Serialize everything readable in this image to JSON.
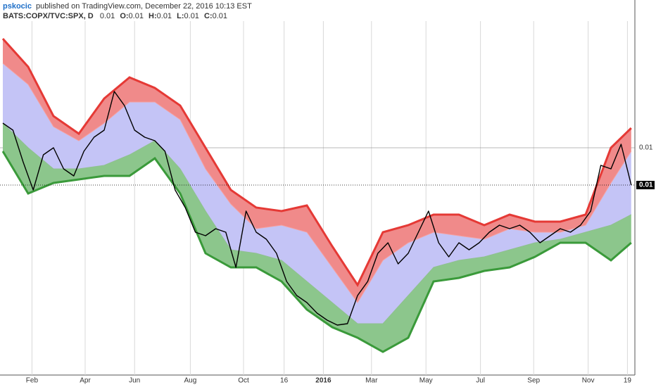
{
  "header": {
    "author": "pskocic",
    "published": "published on TradingView.com, December 22, 2016 10:13 EST",
    "symbol": "BATS:COPX/TVC:SPX, D",
    "last": "0.01",
    "ohlc": [
      {
        "key": "O:",
        "value": "0.01"
      },
      {
        "key": "H:",
        "value": "0.01"
      },
      {
        "key": "L:",
        "value": "0.01"
      },
      {
        "key": "C:",
        "value": "0.01"
      }
    ]
  },
  "chart_data": {
    "type": "line",
    "xlim": [
      0,
      500
    ],
    "xticks": [
      {
        "value": 23,
        "label": "Feb"
      },
      {
        "value": 65,
        "label": "Apr"
      },
      {
        "value": 104,
        "label": "Jun"
      },
      {
        "value": 148,
        "label": "Aug"
      },
      {
        "value": 190,
        "label": "Oct"
      },
      {
        "value": 222,
        "label": "16"
      },
      {
        "value": 253,
        "label": "2016"
      },
      {
        "value": 291,
        "label": "Mar"
      },
      {
        "value": 334,
        "label": "May"
      },
      {
        "value": 377,
        "label": "Jul"
      },
      {
        "value": 419,
        "label": "Sep"
      },
      {
        "value": 462,
        "label": "Nov"
      },
      {
        "value": 493,
        "label": "19"
      }
    ],
    "ylim": [
      0.0085,
      0.0135
    ],
    "yticks": [
      {
        "value": 0.0117,
        "label": "0.01"
      }
    ],
    "last_price": {
      "value": 0.01117,
      "label": "0.01"
    },
    "grid": true,
    "band_x": [
      0,
      20,
      40,
      60,
      80,
      100,
      120,
      140,
      160,
      180,
      200,
      220,
      240,
      260,
      280,
      300,
      320,
      340,
      360,
      380,
      400,
      420,
      440,
      460,
      480,
      496
    ],
    "bands": [
      {
        "color": "#e53935",
        "values": [
          0.01325,
          0.01285,
          0.01215,
          0.0119,
          0.0124,
          0.0127,
          0.01255,
          0.0123,
          0.0117,
          0.0111,
          0.01085,
          0.0108,
          0.01088,
          0.0103,
          0.00975,
          0.0105,
          0.0106,
          0.01075,
          0.01075,
          0.0106,
          0.01075,
          0.01065,
          0.01065,
          0.01075,
          0.0117,
          0.01198
        ]
      },
      {
        "color": "#f5a0a0",
        "values": [
          0.0129,
          0.0126,
          0.012,
          0.0118,
          0.01205,
          0.01235,
          0.01235,
          0.0121,
          0.0114,
          0.0109,
          0.01055,
          0.0106,
          0.0105,
          0.01,
          0.0095,
          0.0101,
          0.01035,
          0.0105,
          0.01045,
          0.0104,
          0.01055,
          0.0105,
          0.0105,
          0.0106,
          0.0112,
          0.01165
        ]
      },
      {
        "color": "#8fc08f",
        "values": [
          0.01205,
          0.0117,
          0.0114,
          0.0114,
          0.01145,
          0.0116,
          0.0118,
          0.0114,
          0.0108,
          0.01025,
          0.0102,
          0.0101,
          0.0098,
          0.0095,
          0.0092,
          0.0092,
          0.0096,
          0.01,
          0.0101,
          0.01015,
          0.01025,
          0.01035,
          0.0104,
          0.0105,
          0.0106,
          0.01075
        ]
      },
      {
        "color": "#3a9a3a",
        "values": [
          0.01165,
          0.01105,
          0.0112,
          0.01125,
          0.0113,
          0.0113,
          0.01155,
          0.01105,
          0.0102,
          0.01,
          0.01,
          0.0098,
          0.0094,
          0.00915,
          0.009,
          0.0088,
          0.009,
          0.0098,
          0.00985,
          0.00995,
          0.01,
          0.01015,
          0.01035,
          0.01035,
          0.0101,
          0.01035
        ]
      }
    ],
    "fills": [
      "#f08a8a",
      "#c4c4f6",
      "#8cc68c"
    ],
    "x": [
      0,
      8,
      16,
      24,
      32,
      40,
      48,
      56,
      64,
      72,
      80,
      88,
      96,
      104,
      112,
      120,
      128,
      136,
      144,
      152,
      160,
      168,
      176,
      184,
      192,
      200,
      208,
      216,
      224,
      232,
      240,
      248,
      256,
      264,
      272,
      280,
      288,
      296,
      304,
      312,
      320,
      328,
      336,
      344,
      352,
      360,
      368,
      376,
      384,
      392,
      400,
      408,
      416,
      424,
      432,
      440,
      448,
      456,
      464,
      472,
      480,
      488,
      496
    ],
    "color": "#000000",
    "values": [
      0.01205,
      0.01195,
      0.0115,
      0.0111,
      0.0116,
      0.0117,
      0.0114,
      0.0113,
      0.01165,
      0.01185,
      0.01195,
      0.0125,
      0.0123,
      0.01195,
      0.01185,
      0.0118,
      0.01165,
      0.0111,
      0.01085,
      0.0105,
      0.01045,
      0.01055,
      0.0105,
      0.01,
      0.0108,
      0.0105,
      0.0104,
      0.0102,
      0.0098,
      0.0096,
      0.0095,
      0.00935,
      0.00925,
      0.00918,
      0.0092,
      0.0096,
      0.0098,
      0.0102,
      0.01035,
      0.01005,
      0.0102,
      0.0105,
      0.0108,
      0.01035,
      0.01015,
      0.01035,
      0.01025,
      0.01035,
      0.0105,
      0.0106,
      0.01055,
      0.0106,
      0.0105,
      0.01035,
      0.01045,
      0.01055,
      0.0105,
      0.0106,
      0.0108,
      0.01145,
      0.0114,
      0.01175,
      0.01117
    ]
  }
}
